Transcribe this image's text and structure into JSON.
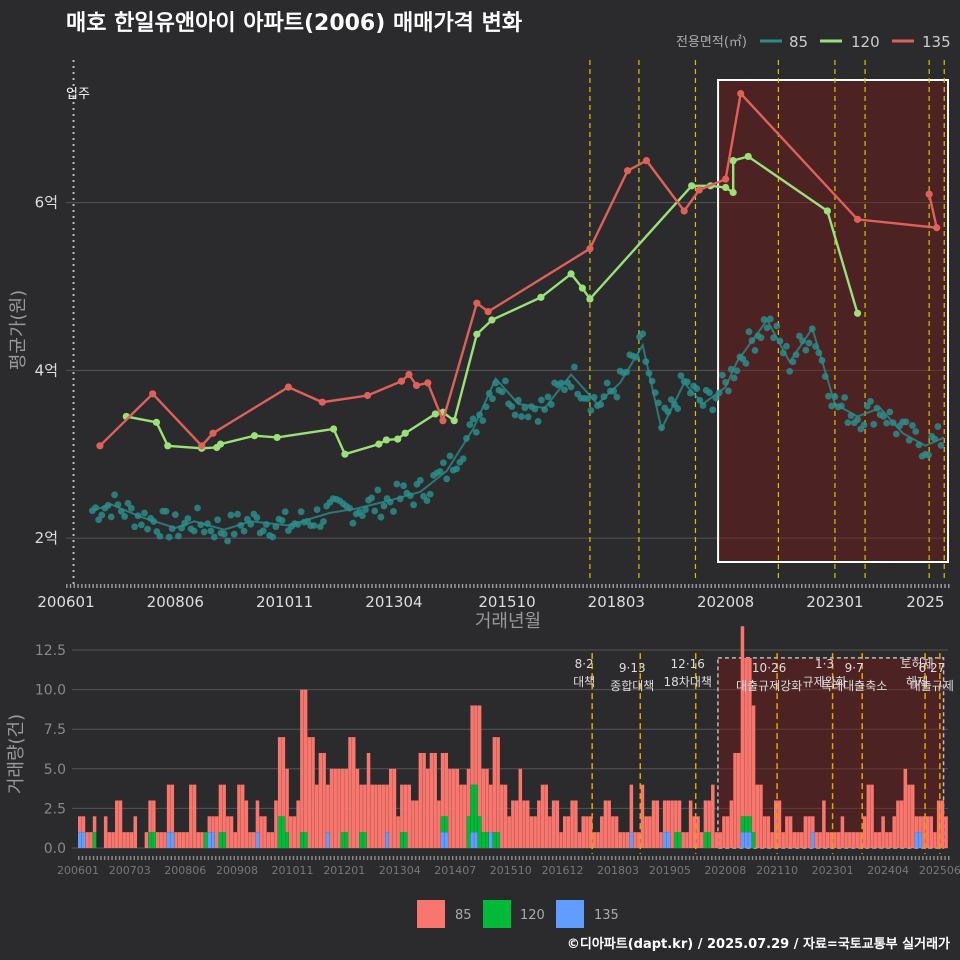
{
  "title": "매호 한일유앤아이 아파트(2006) 매매가격 변화",
  "credit": "©디아파트(dapt.kr) / 2025.07.29 / 자료=국토교통부 실거래가",
  "colors": {
    "bg": "#2b2b2d",
    "grid": "#555555",
    "s85": "#2c8c8a",
    "s120": "#9be07a",
    "s135": "#e0605a",
    "bar85": "#f8766d",
    "bar120": "#00ba38",
    "bar135": "#619cff",
    "policy": "#d6c600",
    "policy_bar": "#e8a400"
  },
  "legend": {
    "title": "전용면적(㎡)",
    "items": [
      "85",
      "120",
      "135"
    ]
  },
  "bar_legend": {
    "items": [
      "85",
      "120",
      "135"
    ]
  },
  "chart_data": [
    {
      "type": "line",
      "title": "매호 한일유앤아이 아파트(2006) 매매가격 변화",
      "xlabel": "거래년월",
      "ylabel": "평균가(원)",
      "x_ticks": [
        "200601",
        "200806",
        "201011",
        "201304",
        "201510",
        "201803",
        "202008",
        "202301",
        "2025"
      ],
      "y_ticks": [
        "2억",
        "4억",
        "6억"
      ],
      "ylim": [
        1.5,
        7.7
      ],
      "y_unit": "억",
      "move_in_label": "입주",
      "move_in": "2006-03",
      "grid": true,
      "legend_position": "top-right",
      "highlight_range": [
        "2020-06",
        "2025-07"
      ],
      "policy_dates": [
        "2017-08",
        "2018-09",
        "2019-12",
        "2021-10",
        "2023-01",
        "2023-09",
        "2025-02",
        "2025-06"
      ],
      "series": [
        {
          "name": "135",
          "x": [
            "2006-10",
            "2007-12",
            "2009-01",
            "2009-04",
            "2010-12",
            "2011-09",
            "2012-09",
            "2013-06",
            "2013-08",
            "2013-10",
            "2014-01",
            "2014-05",
            "2015-02",
            "2015-05",
            "2017-08",
            "2018-06",
            "2018-11",
            "2019-09",
            "2020-01",
            "2020-08",
            "2020-12",
            "2023-07",
            "2025-04",
            "2025-02"
          ],
          "y": [
            3.1,
            3.72,
            3.1,
            3.25,
            3.8,
            3.62,
            3.7,
            3.87,
            3.95,
            3.82,
            3.85,
            3.4,
            4.8,
            4.7,
            5.45,
            6.38,
            6.5,
            5.9,
            6.15,
            6.28,
            7.3,
            5.8,
            5.7,
            6.1
          ]
        },
        {
          "name": "120",
          "x": [
            "2007-05",
            "2008-01",
            "2008-04",
            "2009-01",
            "2009-05",
            "2009-06",
            "2010-03",
            "2010-09",
            "2011-12",
            "2012-03",
            "2012-12",
            "2013-02",
            "2013-05",
            "2013-07",
            "2014-03",
            "2014-05",
            "2014-08",
            "2015-02",
            "2015-06",
            "2016-07",
            "2017-03",
            "2017-06",
            "2017-08",
            "2019-11",
            "2020-04",
            "2020-08",
            "2020-10",
            "2020-10",
            "2021-02",
            "2022-11",
            "2023-07"
          ],
          "y": [
            3.45,
            3.38,
            3.1,
            3.07,
            3.08,
            3.12,
            3.22,
            3.2,
            3.3,
            3.0,
            3.12,
            3.17,
            3.18,
            3.25,
            3.48,
            3.5,
            3.4,
            4.43,
            4.6,
            4.87,
            5.15,
            4.98,
            4.85,
            6.2,
            6.2,
            6.18,
            6.12,
            6.5,
            6.55,
            5.9,
            4.68
          ]
        },
        {
          "name": "85",
          "x": [
            "2006-08",
            "2007-01",
            "2007-09",
            "2008-06",
            "2008-11",
            "2009-07",
            "2010-02",
            "2010-12",
            "2011-11",
            "2012-06",
            "2013-03",
            "2013-11",
            "2014-06",
            "2015-01",
            "2015-07",
            "2016-01",
            "2016-08",
            "2017-03",
            "2017-10",
            "2018-04",
            "2018-10",
            "2019-03",
            "2019-09",
            "2020-02",
            "2020-08",
            "2020-11",
            "2021-03",
            "2021-07",
            "2022-01",
            "2022-07",
            "2023-01",
            "2023-07",
            "2024-01",
            "2024-07",
            "2025-01",
            "2025-06"
          ],
          "y": [
            2.33,
            2.4,
            2.25,
            2.12,
            2.2,
            2.1,
            2.2,
            2.15,
            2.3,
            2.35,
            2.45,
            2.55,
            2.8,
            3.3,
            3.9,
            3.6,
            3.55,
            3.95,
            3.6,
            3.85,
            4.3,
            3.3,
            3.85,
            3.6,
            3.8,
            4.1,
            4.35,
            4.6,
            4.1,
            4.5,
            3.6,
            3.45,
            3.55,
            3.25,
            3.1,
            3.2
          ]
        }
      ]
    },
    {
      "type": "bar",
      "ylabel": "거래량(건)",
      "y_ticks": [
        "0.0",
        "2.5",
        "5.0",
        "7.5",
        "10.0",
        "12.5"
      ],
      "ylim": [
        0,
        12.5
      ],
      "x_ticks": [
        "200601",
        "200703",
        "200806",
        "200908",
        "201011",
        "201201",
        "201304",
        "201407",
        "201510",
        "201612",
        "201803",
        "201905",
        "202008",
        "202110",
        "202301",
        "202404",
        "202506"
      ],
      "policy_labels": [
        {
          "date": "2017-08",
          "label": "8·2 대책"
        },
        {
          "date": "2018-09",
          "label": "9·13 종합대책"
        },
        {
          "date": "2019-12",
          "label": "12·16 18차대책"
        },
        {
          "date": "2021-10",
          "label": "10·26 대출규제강화"
        },
        {
          "date": "2023-01",
          "label": "1·3 규제완화"
        },
        {
          "date": "2023-09",
          "label": "9·7 특례대출축소"
        },
        {
          "date": "2025-02",
          "label": "토허제 해제"
        },
        {
          "date": "2025-06",
          "label": "6·27 대출규제"
        }
      ],
      "series": [
        {
          "name": "85",
          "monthly_sample": [
            1,
            1,
            1,
            0,
            2,
            1,
            3,
            1,
            1,
            2,
            0,
            1,
            2,
            1,
            1,
            3,
            1,
            1,
            1,
            4,
            1,
            0,
            1,
            2,
            3,
            2,
            1,
            4,
            3,
            1,
            2,
            2,
            1,
            3,
            5,
            4,
            2,
            3,
            9,
            7,
            4,
            6,
            3,
            5,
            5,
            4,
            7,
            5,
            3,
            6,
            4,
            4,
            3,
            5,
            2,
            3,
            4,
            3,
            6,
            5,
            6,
            3,
            4,
            5,
            5,
            4,
            3,
            5,
            7,
            4,
            3,
            6,
            4,
            2,
            3,
            5,
            3,
            2,
            3,
            4,
            2,
            3,
            1,
            2,
            3,
            1,
            2,
            2,
            1,
            2,
            3,
            2,
            1,
            1,
            3,
            1,
            4,
            2,
            3,
            1,
            2,
            3,
            2,
            1,
            3,
            2,
            1,
            2,
            4,
            1,
            2,
            3,
            6,
            12,
            10,
            8,
            4,
            2,
            1,
            3,
            1,
            2,
            1,
            1,
            2,
            1,
            1,
            3,
            1,
            1,
            2,
            1,
            1,
            1,
            2,
            4,
            1,
            2,
            1,
            2,
            3,
            5,
            4,
            1,
            2,
            2,
            1,
            3,
            2
          ]
        },
        {
          "name": "120",
          "monthly_sample": [
            0,
            0,
            1,
            0,
            0,
            0,
            0,
            0,
            0,
            0,
            0,
            0,
            1,
            0,
            0,
            0,
            0,
            0,
            0,
            0,
            0,
            1,
            0,
            0,
            1,
            0,
            0,
            0,
            0,
            0,
            0,
            0,
            0,
            0,
            2,
            1,
            0,
            0,
            1,
            0,
            0,
            0,
            0,
            0,
            0,
            1,
            0,
            0,
            1,
            0,
            0,
            0,
            0,
            0,
            0,
            1,
            0,
            0,
            0,
            0,
            0,
            0,
            1,
            0,
            0,
            0,
            2,
            3,
            2,
            1,
            0,
            1,
            0,
            0,
            0,
            0,
            0,
            0,
            0,
            0,
            0,
            0,
            0,
            0,
            0,
            0,
            0,
            0,
            0,
            0,
            0,
            0,
            0,
            0,
            0,
            0,
            0,
            0,
            0,
            0,
            0,
            0,
            1,
            0,
            0,
            0,
            0,
            1,
            0,
            0,
            0,
            0,
            0,
            1,
            1,
            1,
            0,
            0,
            0,
            0,
            0,
            0,
            0,
            0,
            0,
            0,
            0,
            0,
            0,
            0,
            0,
            0,
            0,
            0,
            0,
            0,
            0,
            0,
            0,
            0,
            0,
            0,
            0,
            0,
            0,
            0,
            0,
            0,
            0
          ]
        },
        {
          "name": "135",
          "monthly_sample": [
            1,
            0,
            0,
            0,
            0,
            0,
            0,
            0,
            0,
            0,
            0,
            0,
            0,
            0,
            0,
            1,
            0,
            0,
            0,
            0,
            0,
            0,
            1,
            0,
            0,
            0,
            0,
            0,
            0,
            0,
            1,
            0,
            0,
            0,
            0,
            0,
            0,
            0,
            0,
            0,
            0,
            0,
            1,
            0,
            0,
            0,
            0,
            0,
            0,
            0,
            0,
            0,
            1,
            0,
            0,
            0,
            0,
            0,
            0,
            0,
            0,
            0,
            1,
            0,
            0,
            0,
            0,
            1,
            0,
            0,
            1,
            0,
            0,
            0,
            0,
            0,
            0,
            0,
            0,
            0,
            0,
            0,
            0,
            0,
            0,
            0,
            0,
            0,
            0,
            0,
            0,
            0,
            0,
            0,
            1,
            0,
            0,
            0,
            0,
            0,
            1,
            0,
            0,
            0,
            0,
            0,
            0,
            0,
            0,
            0,
            0,
            0,
            0,
            1,
            1,
            0,
            0,
            0,
            0,
            0,
            0,
            0,
            0,
            0,
            0,
            1,
            0,
            0,
            0,
            0,
            0,
            0,
            0,
            0,
            0,
            0,
            0,
            0,
            0,
            0,
            0,
            0,
            0,
            1,
            0,
            0,
            0,
            0,
            0
          ]
        }
      ]
    }
  ]
}
